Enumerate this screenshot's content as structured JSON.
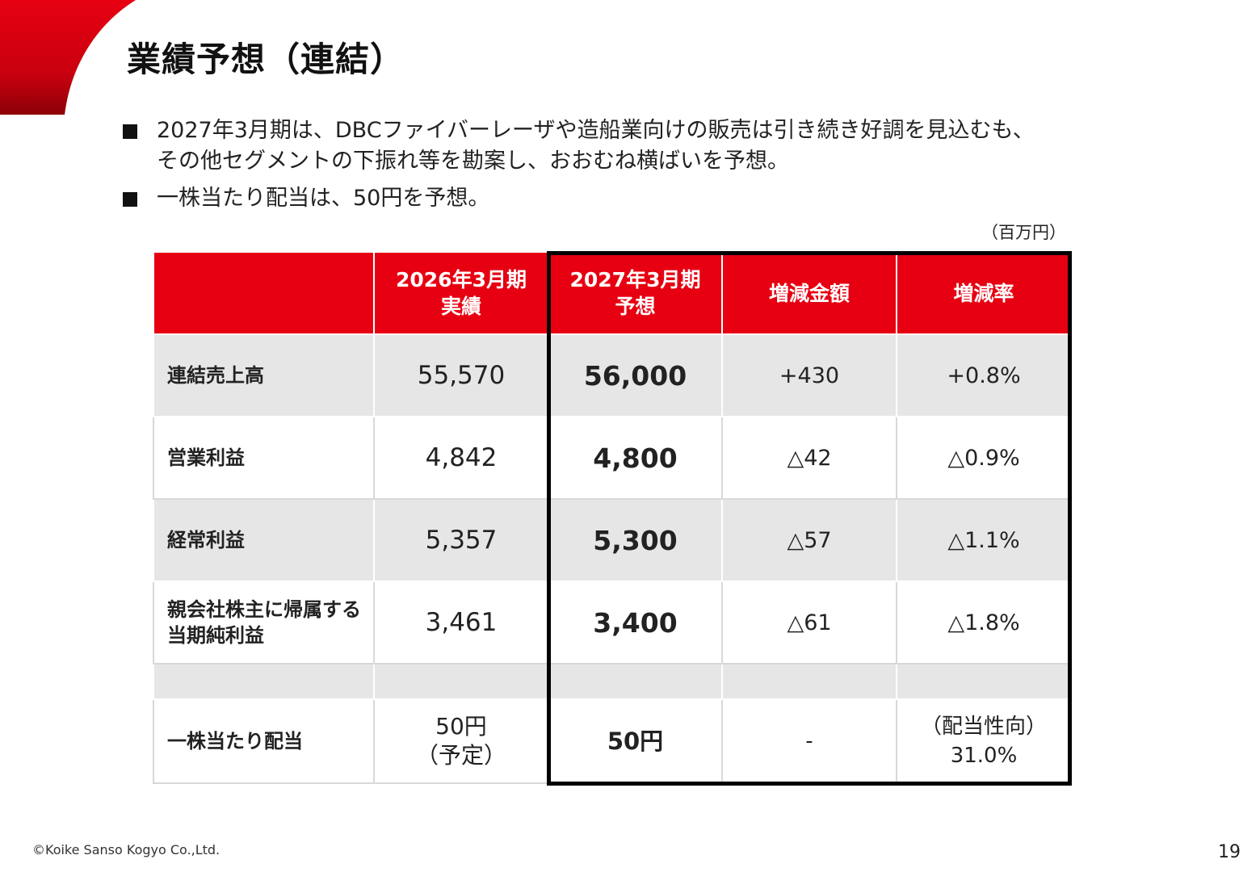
{
  "slide": {
    "title": "業績予想（連結）",
    "bullets": [
      {
        "icon": "square-bullet-icon",
        "lines": [
          "2027年3月期は、DBCファイバーレーザや造船業向けの販売は引き続き好調を見込むも、",
          "その他セグメントの下振れ等を勘案し、おおむね横ばいを予想。"
        ]
      },
      {
        "icon": "square-bullet-icon",
        "lines": [
          "一株当たり配当は、50円を予想。"
        ]
      }
    ],
    "unit_note": "（百万円）",
    "copyright": "©Koike Sanso Kogyo Co.,Ltd.",
    "page_number": "19",
    "accent_color": "#e60012"
  },
  "table": {
    "headers": [
      {
        "lines": [
          ""
        ]
      },
      {
        "lines": [
          "2026年3月期",
          "実績"
        ]
      },
      {
        "lines": [
          "2027年3月期",
          "予想"
        ]
      },
      {
        "lines": [
          "増減金額"
        ]
      },
      {
        "lines": [
          "増減率"
        ]
      }
    ],
    "rows": [
      {
        "label": [
          "連結売上高"
        ],
        "actual": [
          "55,570"
        ],
        "forecast": "56,000",
        "diff": [
          "+430"
        ],
        "rate": [
          "+0.8%"
        ]
      },
      {
        "label": [
          "営業利益"
        ],
        "actual": [
          "4,842"
        ],
        "forecast": "4,800",
        "diff": [
          "△42"
        ],
        "rate": [
          "△0.9%"
        ]
      },
      {
        "label": [
          "経常利益"
        ],
        "actual": [
          "5,357"
        ],
        "forecast": "5,300",
        "diff": [
          "△57"
        ],
        "rate": [
          "△1.1%"
        ]
      },
      {
        "label": [
          "親会社株主に帰属する",
          "当期純利益"
        ],
        "actual": [
          "3,461"
        ],
        "forecast": "3,400",
        "diff": [
          "△61"
        ],
        "rate": [
          "△1.8%"
        ]
      }
    ],
    "dividend_row": {
      "label": [
        "一株当たり配当"
      ],
      "actual": [
        "50円",
        "（予定）"
      ],
      "forecast": "50円",
      "diff": [
        "-"
      ],
      "rate": [
        "（配当性向）",
        "31.0%"
      ]
    }
  }
}
